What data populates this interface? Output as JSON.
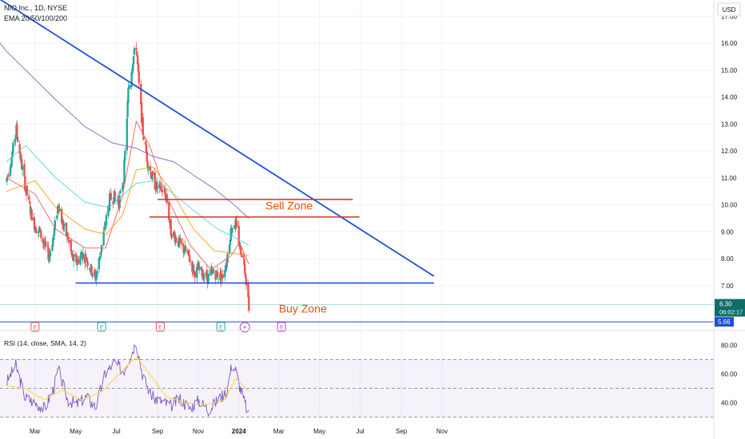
{
  "header": {
    "symbol_line": "NIO Inc., 1D, NYSE",
    "indicator_line": "EMA 20/50/100/200"
  },
  "currency": "USD",
  "colors": {
    "up": "#26a69a",
    "down": "#ef5350",
    "ema20": "#ef5350",
    "ema50": "#ff9800",
    "ema100": "#4dd0e1",
    "ema200": "#7e57c2",
    "trendline": "#1f4fd8",
    "zone_line": "#d32f2f",
    "zone_text": "#e65100",
    "rsi": "#7e57c2",
    "rsi_sma": "#fdd835"
  },
  "chart_data": [
    {
      "type": "candlestick",
      "title": "NIO Inc., 1D, NYSE",
      "ylabel": "USD",
      "ylim": [
        5.4,
        17.6
      ],
      "y_ticks": [
        7.0,
        8.0,
        9.0,
        10.0,
        11.0,
        12.0,
        13.0,
        14.0,
        15.0,
        16.0,
        17.0
      ],
      "x_ticks": [
        "Mar",
        "May",
        "Jul",
        "Sep",
        "Nov",
        "2024",
        "Mar",
        "May",
        "Jul",
        "Sep",
        "Nov"
      ],
      "grid": true,
      "close_path": [
        [
          "2023-01-17",
          10.9
        ],
        [
          "2023-01-25",
          11.8
        ],
        [
          "2023-02-01",
          12.8
        ],
        [
          "2023-02-08",
          11.6
        ],
        [
          "2023-02-15",
          10.6
        ],
        [
          "2023-02-22",
          9.8
        ],
        [
          "2023-03-01",
          9.2
        ],
        [
          "2023-03-08",
          9.0
        ],
        [
          "2023-03-15",
          8.5
        ],
        [
          "2023-03-22",
          8.1
        ],
        [
          "2023-03-29",
          8.9
        ],
        [
          "2023-04-05",
          10.1
        ],
        [
          "2023-04-12",
          9.2
        ],
        [
          "2023-04-19",
          8.8
        ],
        [
          "2023-04-26",
          8.0
        ],
        [
          "2023-05-03",
          7.9
        ],
        [
          "2023-05-10",
          8.2
        ],
        [
          "2023-05-17",
          8.0
        ],
        [
          "2023-05-24",
          7.6
        ],
        [
          "2023-05-31",
          7.3
        ],
        [
          "2023-06-07",
          8.2
        ],
        [
          "2023-06-14",
          9.2
        ],
        [
          "2023-06-21",
          10.2
        ],
        [
          "2023-06-28",
          10.3
        ],
        [
          "2023-07-05",
          10.1
        ],
        [
          "2023-07-12",
          11.0
        ],
        [
          "2023-07-19",
          14.2
        ],
        [
          "2023-07-26",
          15.4
        ],
        [
          "2023-07-31",
          15.9
        ],
        [
          "2023-08-04",
          14.4
        ],
        [
          "2023-08-10",
          12.7
        ],
        [
          "2023-08-17",
          11.6
        ],
        [
          "2023-08-24",
          11.0
        ],
        [
          "2023-08-31",
          10.6
        ],
        [
          "2023-09-07",
          10.6
        ],
        [
          "2023-09-14",
          10.3
        ],
        [
          "2023-09-21",
          9.0
        ],
        [
          "2023-09-28",
          8.8
        ],
        [
          "2023-10-05",
          8.5
        ],
        [
          "2023-10-12",
          8.3
        ],
        [
          "2023-10-19",
          8.0
        ],
        [
          "2023-10-26",
          7.5
        ],
        [
          "2023-11-02",
          7.6
        ],
        [
          "2023-11-09",
          7.4
        ],
        [
          "2023-11-16",
          7.3
        ],
        [
          "2023-11-23",
          7.5
        ],
        [
          "2023-11-30",
          7.4
        ],
        [
          "2023-12-07",
          7.3
        ],
        [
          "2023-12-14",
          8.0
        ],
        [
          "2023-12-21",
          9.2
        ],
        [
          "2023-12-27",
          9.3
        ],
        [
          "2024-01-03",
          8.4
        ],
        [
          "2024-01-09",
          7.9
        ],
        [
          "2024-01-12",
          7.2
        ],
        [
          "2024-01-16",
          6.3
        ]
      ],
      "emas": [
        {
          "name": "EMA 20",
          "points": [
            [
              "2023-01-17",
              11.0
            ],
            [
              "2023-03-01",
              10.4
            ],
            [
              "2023-04-01",
              9.1
            ],
            [
              "2023-05-15",
              8.4
            ],
            [
              "2023-06-15",
              8.4
            ],
            [
              "2023-07-10",
              10.3
            ],
            [
              "2023-07-31",
              13.1
            ],
            [
              "2023-08-20",
              12.2
            ],
            [
              "2023-09-15",
              10.3
            ],
            [
              "2023-10-20",
              8.5
            ],
            [
              "2023-11-20",
              7.6
            ],
            [
              "2023-12-20",
              8.1
            ],
            [
              "2024-01-02",
              8.6
            ],
            [
              "2024-01-16",
              7.8
            ]
          ]
        },
        {
          "name": "EMA 50",
          "points": [
            [
              "2023-01-17",
              10.5
            ],
            [
              "2023-03-01",
              10.9
            ],
            [
              "2023-04-01",
              9.9
            ],
            [
              "2023-05-15",
              9.1
            ],
            [
              "2023-06-15",
              8.9
            ],
            [
              "2023-07-10",
              9.6
            ],
            [
              "2023-07-31",
              11.3
            ],
            [
              "2023-08-25",
              11.4
            ],
            [
              "2023-09-20",
              10.6
            ],
            [
              "2023-10-25",
              9.1
            ],
            [
              "2023-11-25",
              8.3
            ],
            [
              "2023-12-25",
              8.2
            ],
            [
              "2024-01-16",
              8.1
            ]
          ]
        },
        {
          "name": "EMA 100",
          "points": [
            [
              "2023-01-17",
              11.6
            ],
            [
              "2023-02-15",
              12.2
            ],
            [
              "2023-04-01",
              11.0
            ],
            [
              "2023-05-15",
              10.1
            ],
            [
              "2023-06-20",
              9.9
            ],
            [
              "2023-07-31",
              10.8
            ],
            [
              "2023-08-30",
              10.9
            ],
            [
              "2023-09-25",
              10.4
            ],
            [
              "2023-10-30",
              9.7
            ],
            [
              "2023-11-30",
              9.1
            ],
            [
              "2023-12-25",
              8.8
            ],
            [
              "2024-01-16",
              8.5
            ]
          ]
        },
        {
          "name": "EMA 200",
          "points": [
            [
              "2022-12-10",
              16.9
            ],
            [
              "2023-01-17",
              15.7
            ],
            [
              "2023-02-15",
              15.0
            ],
            [
              "2023-04-01",
              13.9
            ],
            [
              "2023-05-15",
              12.9
            ],
            [
              "2023-06-25",
              12.3
            ],
            [
              "2023-07-31",
              12.1
            ],
            [
              "2023-08-25",
              11.8
            ],
            [
              "2023-09-25",
              11.6
            ],
            [
              "2023-10-25",
              11.1
            ],
            [
              "2023-11-25",
              10.6
            ],
            [
              "2023-12-25",
              10.0
            ],
            [
              "2024-01-16",
              9.5
            ]
          ]
        }
      ],
      "annotations": {
        "descending_trendline": {
          "start": [
            "2022-12-24",
            17.85
          ],
          "end": [
            "2024-10-20",
            7.35
          ]
        },
        "support_line": {
          "start": [
            "2023-05-01",
            7.1
          ],
          "end": [
            "2024-10-20",
            7.1
          ]
        },
        "sell_zone_upper": {
          "start": [
            "2023-09-01",
            10.2
          ],
          "end": [
            "2024-06-20",
            10.2
          ]
        },
        "sell_zone_lower": {
          "start": [
            "2023-08-20",
            9.55
          ],
          "end": [
            "2024-06-30",
            9.55
          ]
        },
        "sell_zone_label": "Sell Zone",
        "buy_zone_label": "Buy Zone"
      },
      "earnings_markers": [
        "2023-03-01",
        "2023-06-09",
        "2023-09-05",
        "2023-12-05",
        "2024-03-05"
      ],
      "dividend_marker": "2024-01-10",
      "earnings_label": "E",
      "price_labels": {
        "last_price": "6.30",
        "countdown": "06:02:17",
        "level": "5.66"
      }
    },
    {
      "type": "line",
      "title": "RSI (14, close, SMA, 14, 2)",
      "ylim": [
        26,
        88
      ],
      "y_ticks": [
        40.0,
        60.0,
        80.0
      ],
      "y_tick_labels": [
        "40.00",
        "60.00",
        "80.00"
      ],
      "band": [
        30,
        70
      ],
      "midline": 50,
      "series": [
        {
          "name": "RSI",
          "points": [
            [
              "2023-01-17",
              54
            ],
            [
              "2023-01-31",
              66
            ],
            [
              "2023-02-14",
              44
            ],
            [
              "2023-03-01",
              40
            ],
            [
              "2023-03-15",
              36
            ],
            [
              "2023-03-29",
              50
            ],
            [
              "2023-04-05",
              63
            ],
            [
              "2023-04-19",
              42
            ],
            [
              "2023-05-03",
              39
            ],
            [
              "2023-05-17",
              44
            ],
            [
              "2023-05-31",
              37
            ],
            [
              "2023-06-14",
              60
            ],
            [
              "2023-06-28",
              68
            ],
            [
              "2023-07-12",
              62
            ],
            [
              "2023-07-19",
              70
            ],
            [
              "2023-07-31",
              82
            ],
            [
              "2023-08-10",
              58
            ],
            [
              "2023-08-24",
              44
            ],
            [
              "2023-09-07",
              41
            ],
            [
              "2023-09-21",
              38
            ],
            [
              "2023-10-05",
              43
            ],
            [
              "2023-10-19",
              36
            ],
            [
              "2023-11-02",
              42
            ],
            [
              "2023-11-16",
              35
            ],
            [
              "2023-11-30",
              42
            ],
            [
              "2023-12-14",
              48
            ],
            [
              "2023-12-21",
              66
            ],
            [
              "2023-12-27",
              63
            ],
            [
              "2024-01-03",
              50
            ],
            [
              "2024-01-16",
              31
            ]
          ]
        },
        {
          "name": "RSI SMA",
          "points": [
            [
              "2023-01-17",
              52
            ],
            [
              "2023-02-14",
              50
            ],
            [
              "2023-03-15",
              42
            ],
            [
              "2023-04-10",
              49
            ],
            [
              "2023-05-10",
              42
            ],
            [
              "2023-06-10",
              48
            ],
            [
              "2023-07-05",
              60
            ],
            [
              "2023-07-31",
              72
            ],
            [
              "2023-08-20",
              60
            ],
            [
              "2023-09-15",
              44
            ],
            [
              "2023-10-15",
              40
            ],
            [
              "2023-11-15",
              39
            ],
            [
              "2023-12-10",
              42
            ],
            [
              "2023-12-27",
              57
            ],
            [
              "2024-01-16",
              48
            ]
          ]
        }
      ]
    }
  ]
}
